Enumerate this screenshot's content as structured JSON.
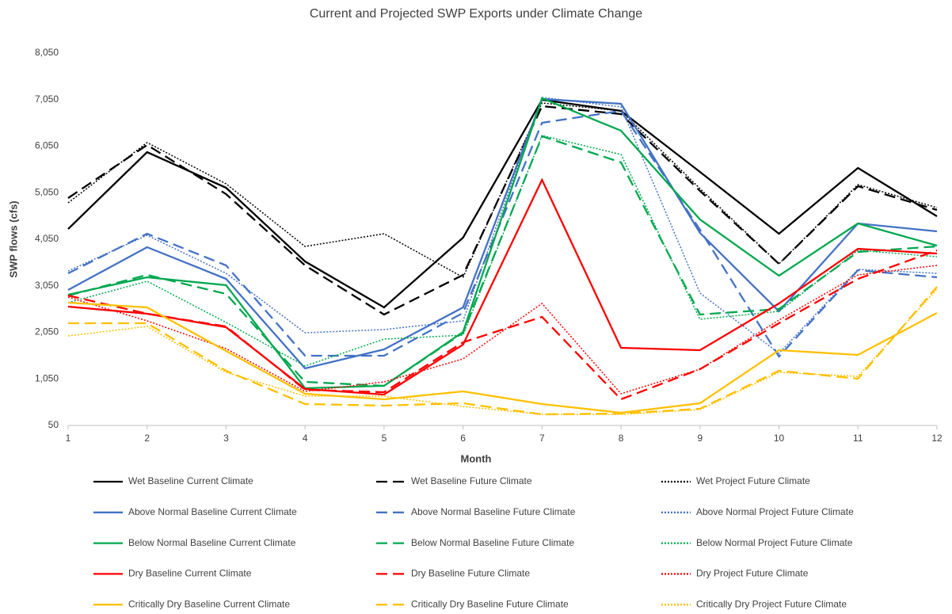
{
  "chart_data": {
    "type": "line",
    "title": "Current and Projected SWP Exports under Climate Change",
    "x_label": "Month",
    "y_label": "SWP flows (cfs)",
    "x": [
      1,
      2,
      3,
      4,
      5,
      6,
      7,
      8,
      9,
      10,
      11,
      12
    ],
    "xlim": [
      1,
      12
    ],
    "xticks": [
      1,
      2,
      3,
      4,
      5,
      6,
      7,
      8,
      9,
      10,
      11,
      12
    ],
    "ylim": [
      50,
      8050
    ],
    "yticks": [
      50,
      {
        "value": 1050,
        "label": "1,050"
      },
      {
        "value": 2050,
        "label": "2,050"
      },
      {
        "value": 3050,
        "label": "3,050"
      },
      {
        "value": 4050,
        "label": "4,050"
      },
      {
        "value": 5050,
        "label": "5,050"
      },
      {
        "value": 6050,
        "label": "6,050"
      },
      {
        "value": 7050,
        "label": "7,050"
      },
      {
        "value": 8050,
        "label": "8,050"
      }
    ],
    "grid": false,
    "legend": "bottom",
    "series": [
      {
        "name": "Wet Baseline Current Climate",
        "color": "#000000",
        "style": "solid",
        "values": [
          4271,
          5922,
          5156,
          3573,
          2586,
          4084,
          7046,
          6808,
          5497,
          4169,
          5582,
          4544
        ]
      },
      {
        "name": "Wet Baseline Future Climate",
        "color": "#000000",
        "style": "dashed",
        "values": [
          4935,
          6076,
          5020,
          3488,
          2433,
          3284,
          6910,
          6740,
          5088,
          3522,
          5190,
          4680
        ]
      },
      {
        "name": "Wet Project Future Climate",
        "color": "#000000",
        "style": "dotted",
        "values": [
          4833,
          6127,
          5241,
          3896,
          4169,
          3233,
          6978,
          6808,
          5139,
          3522,
          5224,
          4731
        ]
      },
      {
        "name": "Above Normal Baseline Current Climate",
        "color": "#4472c4",
        "style": "solid",
        "values": [
          2961,
          3880,
          3199,
          1276,
          1684,
          2586,
          7063,
          6961,
          4186,
          2501,
          4390,
          4220
        ]
      },
      {
        "name": "Above Normal Baseline Future Climate",
        "color": "#4472c4",
        "style": "dashed",
        "values": [
          3318,
          4169,
          3488,
          1548,
          1548,
          2467,
          6552,
          6808,
          4254,
          1531,
          3386,
          3233
        ]
      },
      {
        "name": "Above Normal Project Future Climate",
        "color": "#4472c4",
        "style": "dotted",
        "values": [
          3369,
          4135,
          3318,
          2041,
          2110,
          2297,
          7097,
          6893,
          2893,
          1599,
          3403,
          3318
        ]
      },
      {
        "name": "Below Normal Baseline Current Climate",
        "color": "#00a84f",
        "style": "solid",
        "values": [
          2858,
          3233,
          3063,
          850,
          901,
          2058,
          7080,
          6382,
          4475,
          3267,
          4390,
          3914
        ]
      },
      {
        "name": "Below Normal Baseline Future Climate",
        "color": "#00a84f",
        "style": "dashed",
        "values": [
          2841,
          3284,
          2875,
          986,
          901,
          2041,
          6263,
          5701,
          2433,
          2552,
          3778,
          3897
        ]
      },
      {
        "name": "Below Normal Project Future Climate",
        "color": "#00a84f",
        "style": "dotted",
        "values": [
          2688,
          3148,
          2263,
          1327,
          1905,
          1990,
          6280,
          5871,
          2331,
          2501,
          3812,
          3676
        ]
      },
      {
        "name": "Dry Baseline Current Climate",
        "color": "#ff0000",
        "style": "solid",
        "values": [
          2603,
          2450,
          2160,
          833,
          714,
          1786,
          5326,
          1718,
          1667,
          2671,
          3846,
          3744
        ]
      },
      {
        "name": "Dry Baseline Future Climate",
        "color": "#ff0000",
        "style": "dashed",
        "values": [
          2841,
          2450,
          2177,
          816,
          765,
          1837,
          2382,
          612,
          1259,
          2246,
          3199,
          3812
        ]
      },
      {
        "name": "Dry Project Future Climate",
        "color": "#ff0000",
        "style": "dotted",
        "values": [
          2807,
          2297,
          1701,
          782,
          986,
          1480,
          2671,
          731,
          1259,
          2314,
          3284,
          3488
        ]
      },
      {
        "name": "Critically Dry Baseline Current Climate",
        "color": "#ffc000",
        "style": "solid",
        "values": [
          2688,
          2586,
          1650,
          731,
          612,
          782,
          510,
          322,
          527,
          1667,
          1565,
          2467
        ]
      },
      {
        "name": "Critically Dry Baseline Future Climate",
        "color": "#ffc000",
        "style": "dashed",
        "values": [
          2246,
          2246,
          1225,
          510,
          476,
          527,
          288,
          305,
          408,
          1225,
          1054,
          3029
        ]
      },
      {
        "name": "Critically Dry Project Future Climate",
        "color": "#ffc000",
        "style": "dotted",
        "values": [
          1973,
          2177,
          1190,
          680,
          680,
          458,
          288,
          288,
          390,
          1190,
          1105,
          2977
        ]
      }
    ]
  }
}
